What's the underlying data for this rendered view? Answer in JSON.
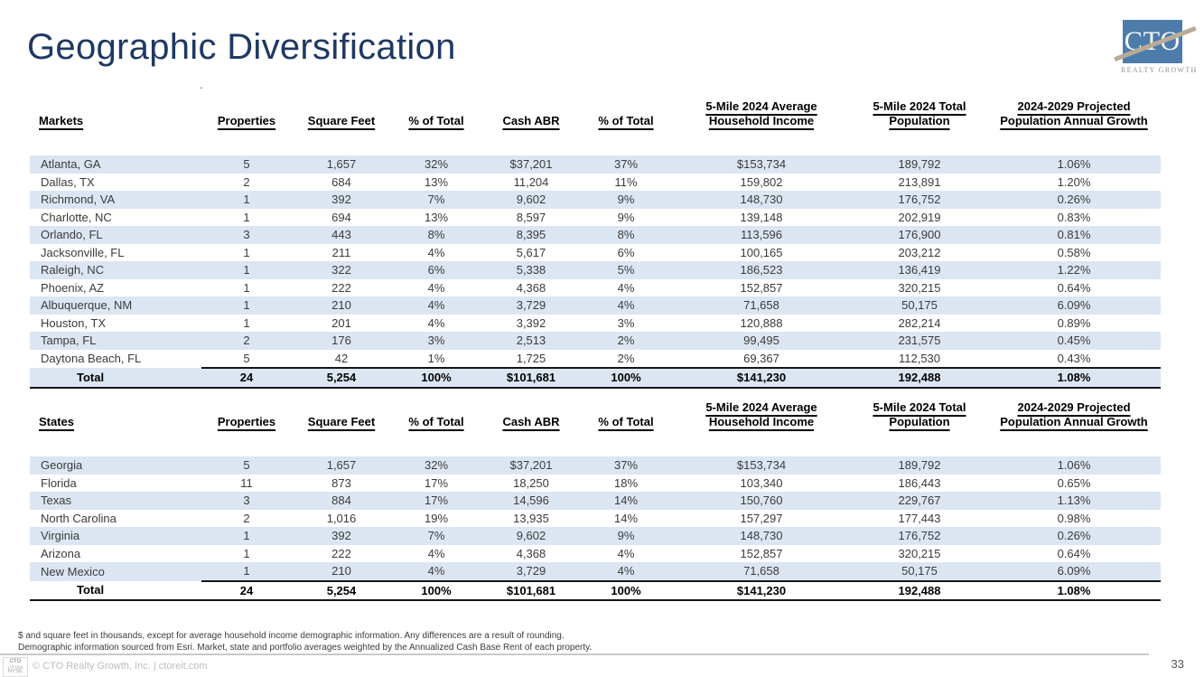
{
  "slide": {
    "title": "Geographic Diversification",
    "stray_mark": ".",
    "page_number": "33"
  },
  "logo": {
    "text": "CTO",
    "subtext": "REALTY GROWTH",
    "badge": [
      "CTO",
      "LISTED",
      "NYSE"
    ]
  },
  "colors": {
    "title_navy": "#1f3864",
    "row_alt_blue": "#dce6f2",
    "logo_blue": "#4d7cab",
    "logo_stripe": "#b8ab97",
    "total_rule": "#151515"
  },
  "footnotes": [
    "$ and square feet in thousands, except for average household income demographic information. Any differences are a result of rounding.",
    "Demographic information sourced from Esri. Market, state and portfolio averages weighted by the Annualized Cash Base Rent of each property."
  ],
  "footer": {
    "copyright": "© CTO Realty Growth, Inc. | ctoreit.com"
  },
  "tables": [
    {
      "id": "markets",
      "headers": [
        "Markets",
        "Properties",
        "Square Feet",
        "% of Total",
        "Cash ABR",
        "% of Total",
        "5-Mile 2024 Average\nHousehold Income",
        "5-Mile 2024 Total\nPopulation",
        "2024-2029 Projected\nPopulation Annual Growth"
      ],
      "rows": [
        [
          "Atlanta, GA",
          "5",
          "1,657",
          "32%",
          "$37,201",
          "37%",
          "$153,734",
          "189,792",
          "1.06%"
        ],
        [
          "Dallas, TX",
          "2",
          "684",
          "13%",
          "11,204",
          "11%",
          "159,802",
          "213,891",
          "1.20%"
        ],
        [
          "Richmond, VA",
          "1",
          "392",
          "7%",
          "9,602",
          "9%",
          "148,730",
          "176,752",
          "0.26%"
        ],
        [
          "Charlotte, NC",
          "1",
          "694",
          "13%",
          "8,597",
          "9%",
          "139,148",
          "202,919",
          "0.83%"
        ],
        [
          "Orlando, FL",
          "3",
          "443",
          "8%",
          "8,395",
          "8%",
          "113,596",
          "176,900",
          "0.81%"
        ],
        [
          "Jacksonville, FL",
          "1",
          "211",
          "4%",
          "5,617",
          "6%",
          "100,165",
          "203,212",
          "0.58%"
        ],
        [
          "Raleigh, NC",
          "1",
          "322",
          "6%",
          "5,338",
          "5%",
          "186,523",
          "136,419",
          "1.22%"
        ],
        [
          "Phoenix, AZ",
          "1",
          "222",
          "4%",
          "4,368",
          "4%",
          "152,857",
          "320,215",
          "0.64%"
        ],
        [
          "Albuquerque, NM",
          "1",
          "210",
          "4%",
          "3,729",
          "4%",
          "71,658",
          "50,175",
          "6.09%"
        ],
        [
          "Houston, TX",
          "1",
          "201",
          "4%",
          "3,392",
          "3%",
          "120,888",
          "282,214",
          "0.89%"
        ],
        [
          "Tampa, FL",
          "2",
          "176",
          "3%",
          "2,513",
          "2%",
          "99,495",
          "231,575",
          "0.45%"
        ],
        [
          "Daytona Beach, FL",
          "5",
          "42",
          "1%",
          "1,725",
          "2%",
          "69,367",
          "112,530",
          "0.43%"
        ]
      ],
      "total": [
        "Total",
        "24",
        "5,254",
        "100%",
        "$101,681",
        "100%",
        "$141,230",
        "192,488",
        "1.08%"
      ]
    },
    {
      "id": "states",
      "headers": [
        "States",
        "Properties",
        "Square Feet",
        "% of Total",
        "Cash ABR",
        "% of Total",
        "5-Mile 2024 Average\nHousehold Income",
        "5-Mile 2024 Total\nPopulation",
        "2024-2029 Projected\nPopulation Annual Growth"
      ],
      "rows": [
        [
          "Georgia",
          "5",
          "1,657",
          "32%",
          "$37,201",
          "37%",
          "$153,734",
          "189,792",
          "1.06%"
        ],
        [
          "Florida",
          "11",
          "873",
          "17%",
          "18,250",
          "18%",
          "103,340",
          "186,443",
          "0.65%"
        ],
        [
          "Texas",
          "3",
          "884",
          "17%",
          "14,596",
          "14%",
          "150,760",
          "229,767",
          "1.13%"
        ],
        [
          "North Carolina",
          "2",
          "1,016",
          "19%",
          "13,935",
          "14%",
          "157,297",
          "177,443",
          "0.98%"
        ],
        [
          "Virginia",
          "1",
          "392",
          "7%",
          "9,602",
          "9%",
          "148,730",
          "176,752",
          "0.26%"
        ],
        [
          "Arizona",
          "1",
          "222",
          "4%",
          "4,368",
          "4%",
          "152,857",
          "320,215",
          "0.64%"
        ],
        [
          "New Mexico",
          "1",
          "210",
          "4%",
          "3,729",
          "4%",
          "71,658",
          "50,175",
          "6.09%"
        ]
      ],
      "total": [
        "Total",
        "24",
        "5,254",
        "100%",
        "$101,681",
        "100%",
        "$141,230",
        "192,488",
        "1.08%"
      ]
    }
  ]
}
